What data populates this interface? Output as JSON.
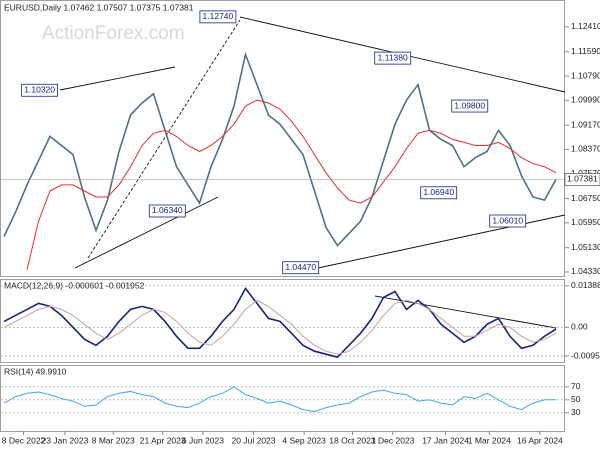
{
  "chart_data": [
    {
      "type": "line",
      "title": "EURUSD,Daily 1.07462 1.07507 1.07375 1.07381",
      "watermark": "ActionForex.com",
      "x": [
        0,
        1,
        2,
        3,
        4,
        5,
        6,
        7,
        8,
        9,
        10,
        11,
        12,
        13,
        14,
        15,
        16,
        17,
        18,
        19,
        20,
        21,
        22,
        23,
        24,
        25,
        26,
        27,
        28,
        29,
        30,
        31,
        32,
        33,
        34,
        35,
        36,
        37,
        38,
        39,
        40,
        41,
        42,
        43,
        44,
        45,
        46,
        47,
        48
      ],
      "xlim": [
        0,
        48
      ],
      "ylim": [
        1.0423,
        1.1323
      ],
      "yticks": [
        {
          "value": 1.1241,
          "label": "1.12410"
        },
        {
          "value": 1.1159,
          "label": "1.11590"
        },
        {
          "value": 1.1079,
          "label": "1.10790"
        },
        {
          "value": 1.0999,
          "label": "1.09990"
        },
        {
          "value": 1.0917,
          "label": "1.09170"
        },
        {
          "value": 1.0837,
          "label": "1.08370"
        },
        {
          "value": 1.0757,
          "label": "1.07570"
        },
        {
          "value": 1.0675,
          "label": "1.06750"
        },
        {
          "value": 1.0595,
          "label": "1.05950"
        },
        {
          "value": 1.0513,
          "label": "1.05130"
        },
        {
          "value": 1.0433,
          "label": "1.04330"
        }
      ],
      "series": [
        {
          "color": "#4f7188",
          "values": [
            1.055,
            1.063,
            1.072,
            1.08,
            1.088,
            1.085,
            1.082,
            1.068,
            1.057,
            1.067,
            1.083,
            1.095,
            1.099,
            1.102,
            1.09,
            1.078,
            1.072,
            1.066,
            1.078,
            1.087,
            1.098,
            1.115,
            1.105,
            1.095,
            1.092,
            1.087,
            1.082,
            1.07,
            1.058,
            1.052,
            1.056,
            1.06,
            1.068,
            1.08,
            1.092,
            1.1,
            1.105,
            1.09,
            1.087,
            1.085,
            1.078,
            1.081,
            1.083,
            1.09,
            1.085,
            1.075,
            1.068,
            1.067,
            1.0738
          ]
        },
        {
          "color": "#e03030",
          "values": [
            null,
            null,
            1.044,
            1.06,
            1.07,
            1.072,
            1.072,
            1.07,
            1.068,
            1.068,
            1.072,
            1.078,
            1.085,
            1.089,
            1.09,
            1.088,
            1.085,
            1.083,
            1.085,
            1.088,
            1.092,
            1.098,
            1.1,
            1.099,
            1.097,
            1.093,
            1.088,
            1.082,
            1.076,
            1.071,
            1.067,
            1.066,
            1.068,
            1.073,
            1.078,
            1.084,
            1.089,
            1.09,
            1.089,
            1.087,
            1.086,
            1.085,
            1.085,
            1.086,
            1.084,
            1.081,
            1.079,
            1.078,
            1.076
          ]
        }
      ],
      "last_price": {
        "value": 1.07381,
        "label": "1.07381"
      },
      "annotations": [
        {
          "label": "1.10320",
          "value": 1.1032,
          "x": 3.1
        },
        {
          "label": "1.12740",
          "value": 1.1274,
          "x": 18.6
        },
        {
          "label": "1.11380",
          "value": 1.1138,
          "x": 33.8
        },
        {
          "label": "1.09800",
          "value": 1.098,
          "x": 40.5
        },
        {
          "label": "1.06340",
          "value": 1.0634,
          "x": 14.2
        },
        {
          "label": "1.06940",
          "value": 1.0694,
          "x": 37.8
        },
        {
          "label": "1.06010",
          "value": 1.0601,
          "x": 43.8
        },
        {
          "label": "1.04470",
          "value": 1.0447,
          "x": 25.8
        }
      ]
    },
    {
      "type": "line",
      "title": "MACD(12,26,9) -0.000601 -0.001952",
      "ylim": [
        -0.0116,
        0.0155
      ],
      "yticks": [
        0.013886,
        {
          "value": 0,
          "label": "0.00"
        },
        -0.009599
      ],
      "series": [
        {
          "color": "#1a237e",
          "values": [
            0.002,
            0.004,
            0.006,
            0.008,
            0.007,
            0.004,
            0,
            -0.004,
            -0.006,
            -0.003,
            0.002,
            0.006,
            0.007,
            0.006,
            0.002,
            -0.003,
            -0.007,
            -0.007,
            -0.003,
            0.002,
            0.006,
            0.013,
            0.008,
            0.003,
            0.002,
            -0.002,
            -0.006,
            -0.008,
            -0.009,
            -0.01,
            -0.006,
            -0.002,
            0.003,
            0.01,
            0.012,
            0.006,
            0.009,
            0.006,
            0.001,
            -0.002,
            -0.005,
            -0.003,
            0.001,
            0.003,
            -0.003,
            -0.007,
            -0.006,
            -0.003,
            -0.0006
          ]
        },
        {
          "color": "#c8a0a0",
          "values": [
            0,
            0.002,
            0.004,
            0.006,
            0.007,
            0.006,
            0.004,
            0.001,
            -0.002,
            -0.004,
            -0.002,
            0.001,
            0.004,
            0.006,
            0.005,
            0.002,
            -0.002,
            -0.005,
            -0.006,
            -0.003,
            0.001,
            0.006,
            0.009,
            0.007,
            0.004,
            0.001,
            -0.003,
            -0.006,
            -0.008,
            -0.009,
            -0.008,
            -0.005,
            -0.001,
            0.004,
            0.008,
            0.009,
            0.008,
            0.006,
            0.003,
            0,
            -0.003,
            -0.003,
            -0.001,
            0.001,
            0,
            -0.003,
            -0.005,
            -0.004,
            -0.002
          ]
        }
      ]
    },
    {
      "type": "line",
      "title": "RSI(14) 49.9910",
      "ylim": [
        2,
        102
      ],
      "yticks": [
        70,
        50,
        30
      ],
      "xticks": [
        {
          "value": 1.7,
          "label": "8 Dec 2022"
        },
        {
          "value": 5.3,
          "label": "23 Jan 2023"
        },
        {
          "value": 9.5,
          "label": "8 Mar 2023"
        },
        {
          "value": 13.8,
          "label": "21 Apr 2023"
        },
        {
          "value": 17.3,
          "label": "6 Jun 2023"
        },
        {
          "value": 21.7,
          "label": "20 Jul 2023"
        },
        {
          "value": 26.1,
          "label": "4 Sep 2023"
        },
        {
          "value": 30.3,
          "label": "18 Oct 2023"
        },
        {
          "value": 33.8,
          "label": "1 Dec 2023"
        },
        {
          "value": 38.4,
          "label": "17 Jan 2024"
        },
        {
          "value": 42.2,
          "label": "1 Mar 2024"
        },
        {
          "value": 46.6,
          "label": "16 Apr 2024"
        }
      ],
      "series": [
        {
          "color": "#42a5f5",
          "values": [
            45,
            55,
            60,
            62,
            58,
            52,
            48,
            40,
            42,
            55,
            60,
            63,
            58,
            55,
            45,
            40,
            38,
            45,
            55,
            60,
            70,
            58,
            52,
            45,
            48,
            42,
            35,
            32,
            38,
            42,
            45,
            55,
            62,
            65,
            60,
            58,
            48,
            50,
            45,
            42,
            55,
            52,
            60,
            50,
            40,
            35,
            45,
            50,
            49.991
          ]
        }
      ]
    }
  ]
}
